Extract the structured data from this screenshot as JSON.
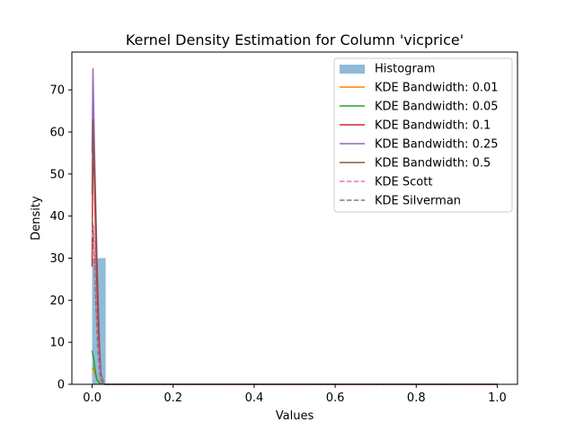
{
  "chart_data": {
    "type": "line",
    "title": "Kernel Density Estimation for Column 'vicprice'",
    "xlabel": "Values",
    "ylabel": "Density",
    "xlim": [
      -0.05,
      1.05
    ],
    "ylim": [
      0,
      79
    ],
    "xticks": [
      0.0,
      0.2,
      0.4,
      0.6,
      0.8,
      1.0
    ],
    "xtick_labels": [
      "0.0",
      "0.2",
      "0.4",
      "0.6",
      "0.8",
      "1.0"
    ],
    "yticks": [
      0,
      10,
      20,
      30,
      40,
      50,
      60,
      70
    ],
    "ytick_labels": [
      "0",
      "10",
      "20",
      "30",
      "40",
      "50",
      "60",
      "70"
    ],
    "grid": false,
    "legend_position": "top-right",
    "histogram": {
      "name": "Histogram",
      "color": "#1f77b4",
      "opacity": 0.5,
      "bins": [
        {
          "x0": 0.0,
          "x1": 0.0333,
          "density": 30.0
        }
      ]
    },
    "series": [
      {
        "name": "KDE Bandwidth: 0.01",
        "color": "#ff7f0e",
        "dash": "solid",
        "x": [
          0.0,
          0.003,
          0.006,
          0.01,
          0.02,
          0.03,
          0.1,
          0.4,
          0.7,
          1.0
        ],
        "y": [
          3.5,
          4.0,
          3.0,
          1.5,
          0.2,
          0.0,
          0.0,
          0.0,
          0.0,
          0.0
        ]
      },
      {
        "name": "KDE Bandwidth: 0.05",
        "color": "#2ca02c",
        "dash": "solid",
        "x": [
          0.0,
          0.004,
          0.008,
          0.012,
          0.02,
          0.03,
          0.1,
          0.4,
          0.7,
          1.0
        ],
        "y": [
          8.0,
          6.0,
          3.0,
          1.0,
          0.2,
          0.0,
          0.0,
          0.0,
          0.0,
          0.0
        ]
      },
      {
        "name": "KDE Bandwidth: 0.1",
        "color": "#d62728",
        "dash": "solid",
        "x": [
          0.0,
          0.002,
          0.005,
          0.01,
          0.015,
          0.02,
          0.03,
          0.1,
          0.4,
          0.7,
          1.0
        ],
        "y": [
          28.0,
          62.0,
          50.0,
          30.0,
          12.0,
          3.0,
          0.0,
          0.0,
          0.0,
          0.0,
          0.0
        ]
      },
      {
        "name": "KDE Bandwidth: 0.25",
        "color": "#9467bd",
        "dash": "solid",
        "x": [
          0.0,
          0.002,
          0.006,
          0.012,
          0.018,
          0.022,
          0.03,
          0.1,
          0.4,
          0.7,
          1.0
        ],
        "y": [
          55.0,
          75.0,
          55.0,
          30.0,
          10.0,
          2.0,
          0.0,
          0.0,
          0.0,
          0.0,
          0.0
        ]
      },
      {
        "name": "KDE Bandwidth: 0.5",
        "color": "#8c564b",
        "dash": "solid",
        "x": [
          0.0,
          0.002,
          0.006,
          0.012,
          0.018,
          0.022,
          0.03,
          0.1,
          0.4,
          0.7,
          1.0
        ],
        "y": [
          45.0,
          63.0,
          50.0,
          28.0,
          8.0,
          1.0,
          0.0,
          0.0,
          0.0,
          0.0,
          0.0
        ]
      },
      {
        "name": "KDE Scott",
        "color": "#e377c2",
        "dash": "dashed",
        "x": [
          0.0,
          0.003,
          0.008,
          0.014,
          0.02,
          0.03,
          0.1,
          0.4,
          0.7,
          1.0
        ],
        "y": [
          35.0,
          38.0,
          25.0,
          10.0,
          2.0,
          0.0,
          0.0,
          0.0,
          0.0,
          0.0
        ]
      },
      {
        "name": "KDE Silverman",
        "color": "#7f7f7f",
        "dash": "dashed",
        "x": [
          0.0,
          0.003,
          0.008,
          0.014,
          0.02,
          0.03,
          0.1,
          0.4,
          0.7,
          1.0
        ],
        "y": [
          40.0,
          36.0,
          22.0,
          8.0,
          1.5,
          0.0,
          0.0,
          0.0,
          0.0,
          0.0
        ]
      }
    ]
  }
}
